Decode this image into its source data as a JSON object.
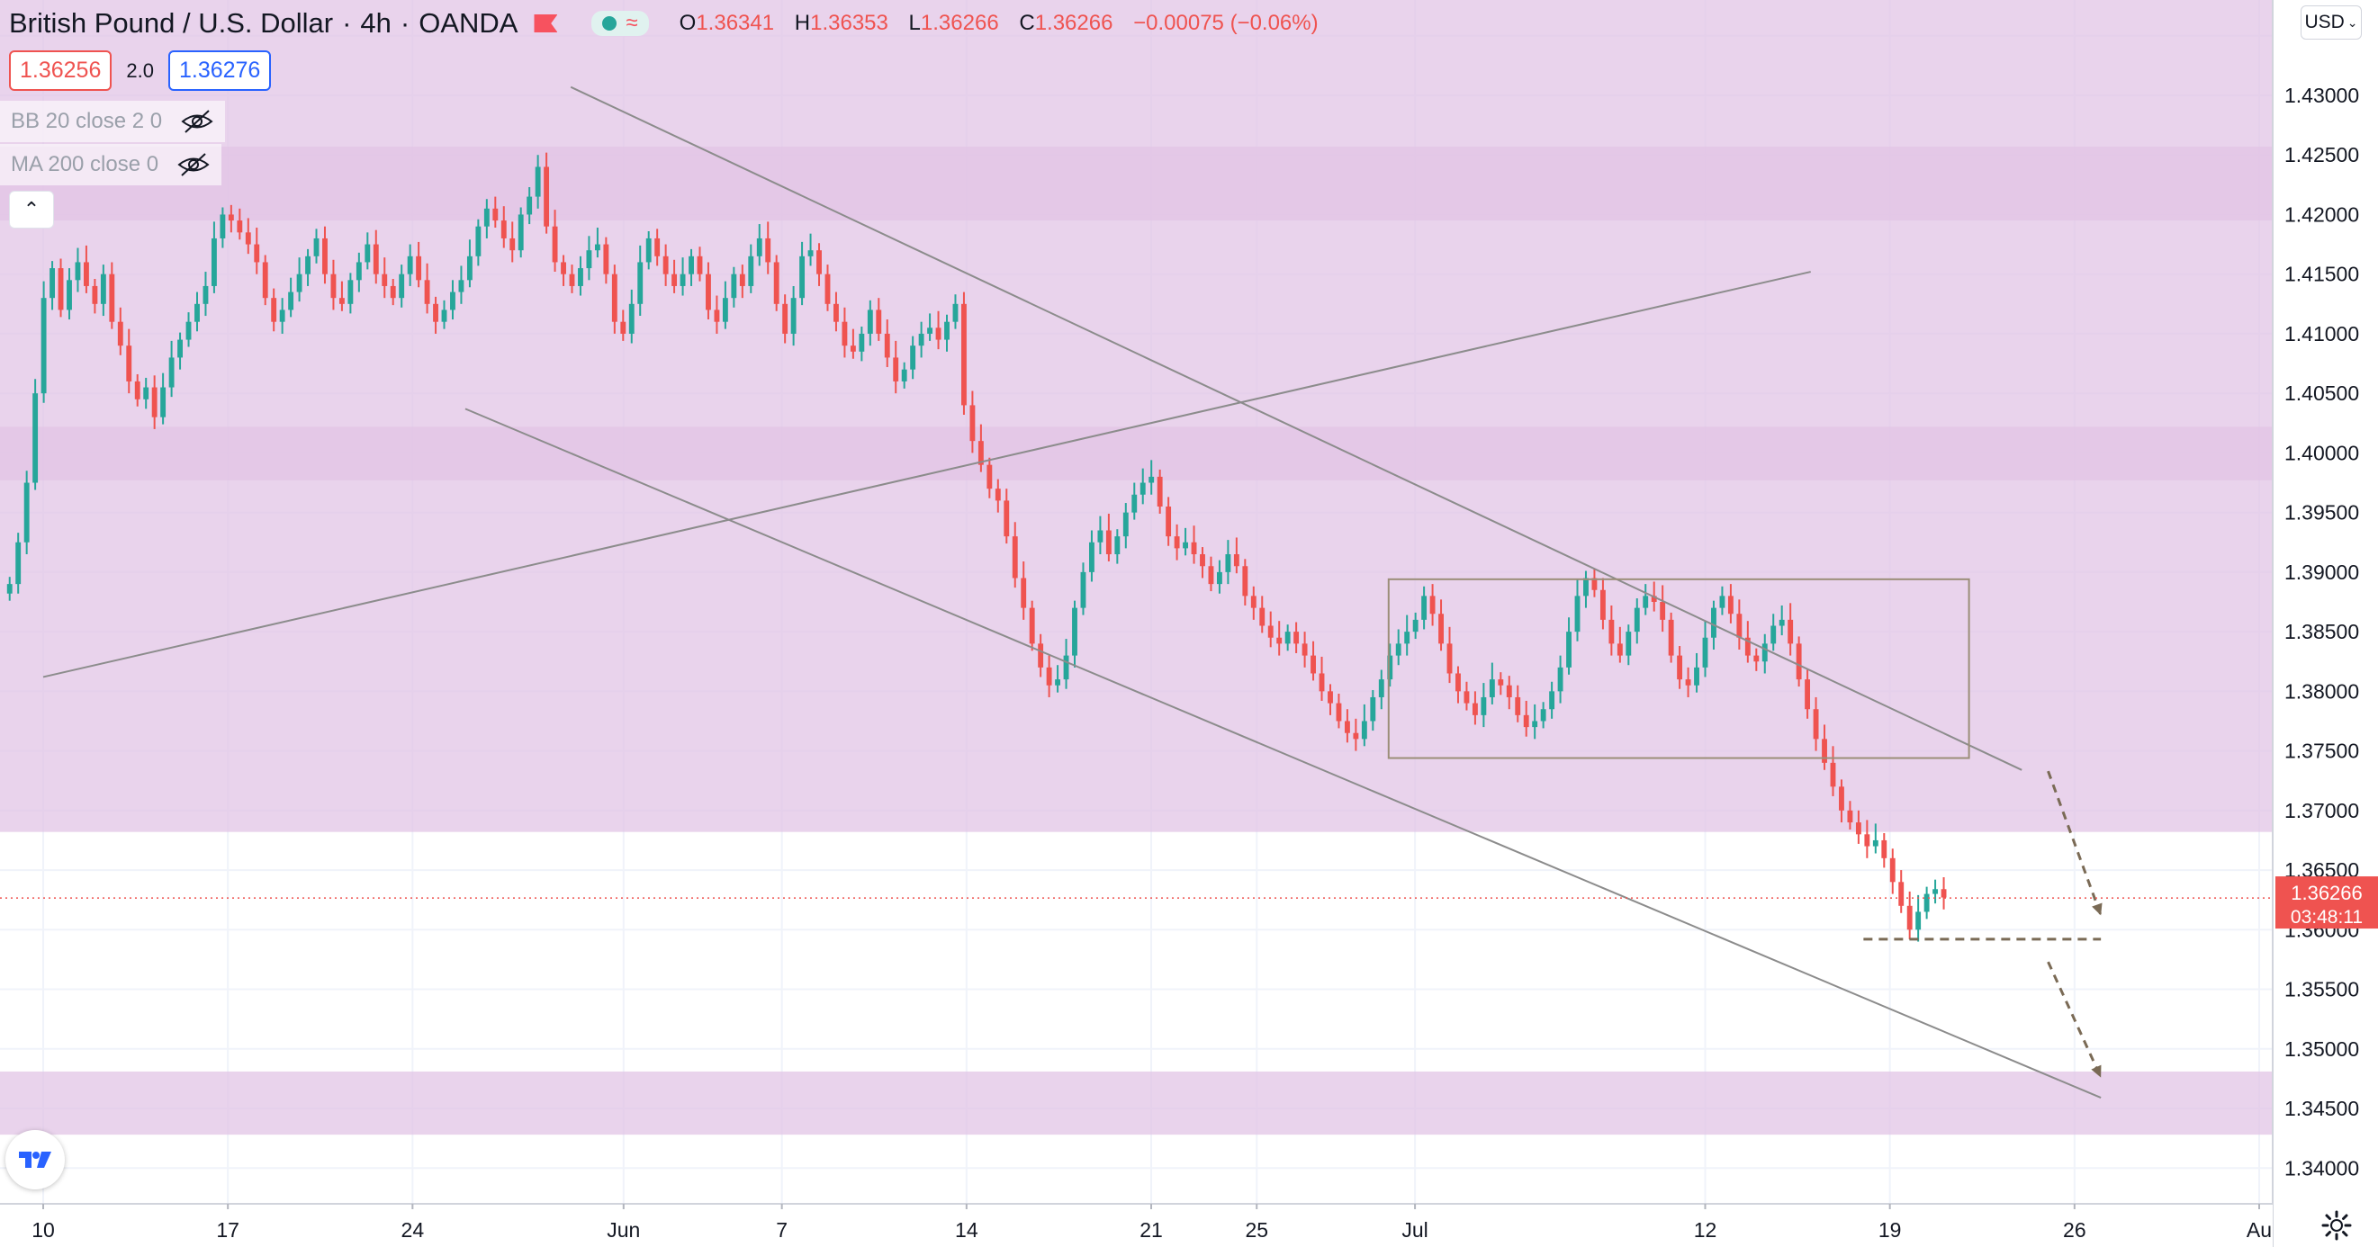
{
  "header": {
    "symbol": "British Pound / U.S. Dollar",
    "interval": "4h",
    "exchange": "OANDA",
    "ohlc": {
      "open_label": "O",
      "open": "1.36341",
      "high_label": "H",
      "high": "1.36353",
      "low_label": "L",
      "low": "1.36266",
      "close_label": "C",
      "close": "1.36266",
      "change": "−0.00075 (−0.06%)"
    },
    "bid": "1.36256",
    "spread": "2.0",
    "ask": "1.36276",
    "market_status_icon": "market-open-dot-icon",
    "wave_icon": "wave-icon"
  },
  "indicators": [
    {
      "label": "BB 20 close 2 0",
      "icon": "eye-hidden-icon"
    },
    {
      "label": "MA 200 close 0",
      "icon": "eye-hidden-icon"
    }
  ],
  "collapse_icon": "chevron-up-icon",
  "currency_button": "USD",
  "price_tag": {
    "price": "1.36266",
    "countdown": "03:48:11"
  },
  "colors": {
    "up": "#26a69a",
    "down": "#ef5350",
    "zone": "#e1c4e6",
    "trendline": "#8c8c8c",
    "arrow": "#7a6a55",
    "box": "#9b8e78",
    "grid": "#f0f3fa",
    "text": "#131722"
  },
  "chart_data": {
    "type": "candlestick",
    "title": "British Pound / U.S. Dollar",
    "interval": "4h",
    "ylim": [
      1.337,
      1.438
    ],
    "y_ticks": [
      "1.43500",
      "1.43000",
      "1.42500",
      "1.42000",
      "1.41500",
      "1.41000",
      "1.40500",
      "1.40000",
      "1.39500",
      "1.39000",
      "1.38500",
      "1.38000",
      "1.37500",
      "1.37000",
      "1.36500",
      "1.36000",
      "1.35500",
      "1.35000",
      "1.34500",
      "1.34000"
    ],
    "x_ticks": [
      "10",
      "17",
      "24",
      "Jun",
      "7",
      "14",
      "21",
      "25",
      "Jul",
      "12",
      "19",
      "26",
      "Au"
    ],
    "current_price": 1.36266,
    "support_resistance_zones": [
      [
        1.4195,
        1.4257
      ],
      [
        1.3977,
        1.4022
      ],
      [
        1.3682,
        1.7337
      ],
      [
        1.3428,
        1.3481
      ]
    ],
    "trend_lines": [
      {
        "from": [
          "May 30",
          1.4307
        ],
        "to": [
          "Jul 24",
          1.3734
        ]
      },
      {
        "from": [
          "May 26",
          1.4037
        ],
        "to": [
          "Jul 27",
          1.3459
        ]
      },
      {
        "from": [
          "May 10",
          1.3812
        ],
        "to": [
          "Jul 16",
          1.4152
        ]
      }
    ],
    "range_box": {
      "from": "Jun 30",
      "to": "Jul 22",
      "top": 1.3894,
      "bottom": 1.3744
    },
    "projection_levels": [
      1.3592
    ],
    "projection_arrows": [
      {
        "from": [
          "Jul 25",
          1.3733
        ],
        "to": [
          "Jul 27",
          1.3612
        ]
      },
      {
        "from": [
          "Jul 25",
          1.3573
        ],
        "to": [
          "Jul 27",
          1.3476
        ]
      }
    ],
    "candles": {
      "note_unit": "4h bars, May 10 – Jul 21",
      "closes": [
        1.389,
        1.3925,
        1.3975,
        1.405,
        1.413,
        1.4155,
        1.412,
        1.4145,
        1.416,
        1.414,
        1.4125,
        1.415,
        1.411,
        1.409,
        1.406,
        1.4045,
        1.4055,
        1.403,
        1.4055,
        1.408,
        1.4095,
        1.411,
        1.4125,
        1.414,
        1.418,
        1.42,
        1.4195,
        1.4185,
        1.4175,
        1.416,
        1.413,
        1.411,
        1.412,
        1.4135,
        1.415,
        1.4165,
        1.418,
        1.415,
        1.413,
        1.4125,
        1.4145,
        1.416,
        1.4175,
        1.415,
        1.414,
        1.413,
        1.415,
        1.4165,
        1.4145,
        1.4125,
        1.411,
        1.412,
        1.4135,
        1.4145,
        1.4165,
        1.419,
        1.4205,
        1.4195,
        1.418,
        1.417,
        1.42,
        1.4215,
        1.424,
        1.419,
        1.416,
        1.415,
        1.414,
        1.4155,
        1.417,
        1.4175,
        1.415,
        1.411,
        1.41,
        1.4125,
        1.416,
        1.418,
        1.4165,
        1.415,
        1.414,
        1.415,
        1.4165,
        1.415,
        1.412,
        1.411,
        1.413,
        1.415,
        1.414,
        1.4165,
        1.418,
        1.416,
        1.4125,
        1.41,
        1.413,
        1.4165,
        1.417,
        1.415,
        1.4125,
        1.411,
        1.409,
        1.4085,
        1.41,
        1.412,
        1.41,
        1.408,
        1.406,
        1.407,
        1.409,
        1.41,
        1.4105,
        1.4095,
        1.411,
        1.4125,
        1.404,
        1.401,
        1.399,
        1.397,
        1.396,
        1.393,
        1.3895,
        1.387,
        1.384,
        1.382,
        1.3805,
        1.381,
        1.383,
        1.387,
        1.39,
        1.3925,
        1.3935,
        1.3915,
        1.393,
        1.395,
        1.3965,
        1.3975,
        1.398,
        1.3955,
        1.393,
        1.392,
        1.3925,
        1.3915,
        1.3905,
        1.389,
        1.39,
        1.3915,
        1.3905,
        1.388,
        1.387,
        1.3855,
        1.3845,
        1.384,
        1.385,
        1.384,
        1.383,
        1.3815,
        1.38,
        1.379,
        1.3775,
        1.3765,
        1.376,
        1.3775,
        1.3795,
        1.381,
        1.383,
        1.384,
        1.385,
        1.386,
        1.388,
        1.3865,
        1.384,
        1.3815,
        1.38,
        1.379,
        1.378,
        1.3795,
        1.381,
        1.3805,
        1.3795,
        1.378,
        1.377,
        1.3775,
        1.3785,
        1.38,
        1.382,
        1.385,
        1.388,
        1.3895,
        1.3885,
        1.386,
        1.384,
        1.383,
        1.385,
        1.387,
        1.388,
        1.3875,
        1.386,
        1.383,
        1.381,
        1.3805,
        1.382,
        1.3845,
        1.387,
        1.388,
        1.3865,
        1.3845,
        1.383,
        1.3825,
        1.384,
        1.3855,
        1.386,
        1.384,
        1.381,
        1.3785,
        1.376,
        1.374,
        1.372,
        1.37,
        1.369,
        1.368,
        1.367,
        1.3675,
        1.366,
        1.364,
        1.362,
        1.36,
        1.3615,
        1.363,
        1.3634,
        1.3627
      ]
    }
  }
}
